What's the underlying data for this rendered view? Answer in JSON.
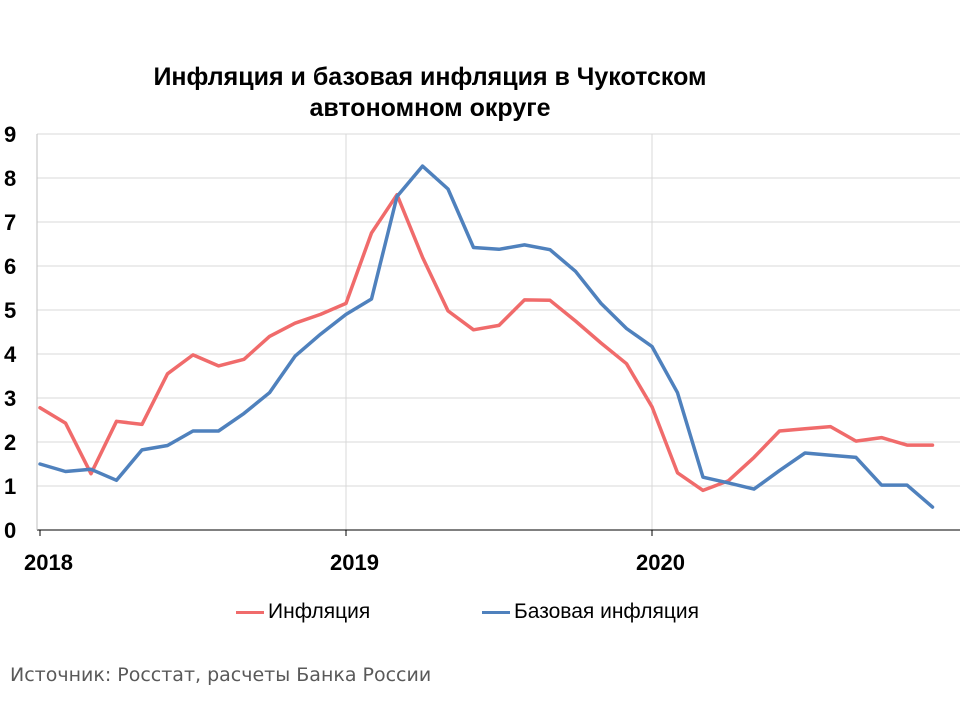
{
  "chart_data": {
    "type": "line",
    "title": "Инфляция и базовая инфляция в Чукотском\nавтономном округе",
    "xlabel": "",
    "ylabel": "",
    "ylim": [
      0,
      9
    ],
    "y_ticks": [
      "0",
      "1",
      "2",
      "3",
      "4",
      "5",
      "6",
      "7",
      "8",
      "9"
    ],
    "x_tick_labels": [
      "2018",
      "2019",
      "2020"
    ],
    "grid": true,
    "legend_position": "bottom",
    "x": [
      "2018-01",
      "2018-02",
      "2018-03",
      "2018-04",
      "2018-05",
      "2018-06",
      "2018-07",
      "2018-08",
      "2018-09",
      "2018-10",
      "2018-11",
      "2018-12",
      "2019-01",
      "2019-02",
      "2019-03",
      "2019-04",
      "2019-05",
      "2019-06",
      "2019-07",
      "2019-08",
      "2019-09",
      "2019-10",
      "2019-11",
      "2019-12",
      "2020-01",
      "2020-02",
      "2020-03",
      "2020-04",
      "2020-05",
      "2020-06",
      "2020-07",
      "2020-08",
      "2020-09",
      "2020-10",
      "2020-11",
      "2020-12"
    ],
    "series": [
      {
        "name": "Инфляция",
        "color": "#f06b6b",
        "values": [
          2.78,
          2.43,
          1.28,
          2.47,
          2.4,
          3.55,
          3.98,
          3.73,
          3.88,
          4.4,
          4.7,
          4.9,
          5.15,
          6.75,
          7.62,
          6.2,
          4.98,
          4.55,
          4.65,
          5.23,
          5.22,
          4.75,
          4.25,
          3.78,
          2.8,
          1.3,
          0.9,
          1.12,
          1.65,
          2.25,
          2.3,
          2.35,
          2.02,
          2.1,
          1.93,
          1.93
        ]
      },
      {
        "name": "Базовая инфляция",
        "color": "#4f81bd",
        "values": [
          1.5,
          1.33,
          1.38,
          1.13,
          1.82,
          1.92,
          2.25,
          2.25,
          2.65,
          3.12,
          3.95,
          4.45,
          4.9,
          5.25,
          7.58,
          8.27,
          7.75,
          6.42,
          6.38,
          6.48,
          6.37,
          5.88,
          5.15,
          4.58,
          4.17,
          3.12,
          1.2,
          1.07,
          0.93,
          1.35,
          1.75,
          1.7,
          1.65,
          1.02,
          1.02,
          0.52
        ]
      }
    ]
  },
  "source_note": "Источник: Росстат, расчеты Банка России"
}
